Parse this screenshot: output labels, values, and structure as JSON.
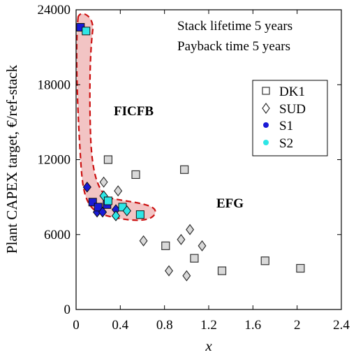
{
  "chart_data": {
    "type": "scatter",
    "ylabel": "Plant CAPEX target, €/ref-stack",
    "xlabel": "x",
    "xlim": [
      0,
      2.4
    ],
    "ylim": [
      0,
      24000
    ],
    "xticks": [
      "0",
      "0.4",
      "0.8",
      "1.2",
      "1.6",
      "2",
      "2.4"
    ],
    "yticks": [
      "0",
      "6000",
      "12000",
      "18000",
      "24000"
    ],
    "annotations": {
      "line1": "Stack lifetime 5 years",
      "line2": "Payback time 5 years",
      "region1": "FICFB",
      "region2": "EFG"
    },
    "legend_position": "top-right",
    "colors": {
      "ficfb_region_fill": "#f2c4c4",
      "ficfb_region_edge": "#cc1111",
      "ficfb_label": "#b00000",
      "s1": "#1a1ad6",
      "s2": "#2ee6e6",
      "open_marker_fill": "#d9d9d9"
    },
    "series": [
      {
        "name": "DK1",
        "marker": "square-open",
        "points": [
          [
            0.29,
            12000
          ],
          [
            0.54,
            10800
          ],
          [
            0.98,
            11200
          ],
          [
            0.81,
            5100
          ],
          [
            1.07,
            4100
          ],
          [
            1.32,
            3100
          ],
          [
            1.71,
            3900
          ],
          [
            2.03,
            3300
          ]
        ]
      },
      {
        "name": "SUD",
        "marker": "diamond-open",
        "points": [
          [
            0.25,
            10200
          ],
          [
            0.38,
            9500
          ],
          [
            0.61,
            5500
          ],
          [
            0.95,
            5600
          ],
          [
            1.03,
            6400
          ],
          [
            1.14,
            5100
          ],
          [
            0.84,
            3100
          ],
          [
            1.0,
            2700
          ]
        ]
      },
      {
        "name": "S1",
        "marker": "filled",
        "color": "#1a1ad6",
        "points": [
          [
            0.04,
            22600
          ],
          [
            0.1,
            9800
          ],
          [
            0.15,
            8600
          ],
          [
            0.19,
            7800
          ],
          [
            0.2,
            8200
          ],
          [
            0.24,
            7800
          ],
          [
            0.28,
            8400
          ],
          [
            0.36,
            8000
          ]
        ]
      },
      {
        "name": "S2",
        "marker": "filled",
        "color": "#2ee6e6",
        "points": [
          [
            0.09,
            22300
          ],
          [
            0.25,
            9100
          ],
          [
            0.29,
            8700
          ],
          [
            0.36,
            7500
          ],
          [
            0.42,
            8200
          ],
          [
            0.46,
            7900
          ],
          [
            0.58,
            7600
          ]
        ]
      }
    ]
  }
}
